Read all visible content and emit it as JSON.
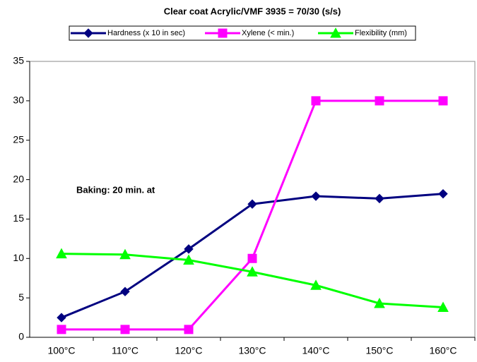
{
  "chart_data": {
    "type": "line",
    "title": "Clear coat Acrylic/VMF 3935 = 70/30 (s/s)",
    "annotation": "Baking: 20 min. at",
    "categories": [
      "100°C",
      "110°C",
      "120°C",
      "130°C",
      "140°C",
      "150°C",
      "160°C"
    ],
    "series": [
      {
        "name": "Hardness (x 10 in sec)",
        "color": "#000080",
        "marker": "diamond",
        "values": [
          2.5,
          5.8,
          11.2,
          16.9,
          17.9,
          17.6,
          18.2
        ]
      },
      {
        "name": "Xylene (< min.)",
        "color": "#ff00ff",
        "marker": "square",
        "values": [
          1,
          1,
          1,
          10,
          30,
          30,
          30
        ]
      },
      {
        "name": "Flexibility  (mm)",
        "color": "#00ff00",
        "marker": "triangle",
        "values": [
          10.6,
          10.5,
          9.8,
          8.3,
          6.6,
          4.3,
          3.8
        ]
      }
    ],
    "ylim": [
      0,
      35
    ],
    "yticks": [
      0,
      5,
      10,
      15,
      20,
      25,
      30,
      35
    ],
    "grid": false,
    "legend": "top"
  }
}
